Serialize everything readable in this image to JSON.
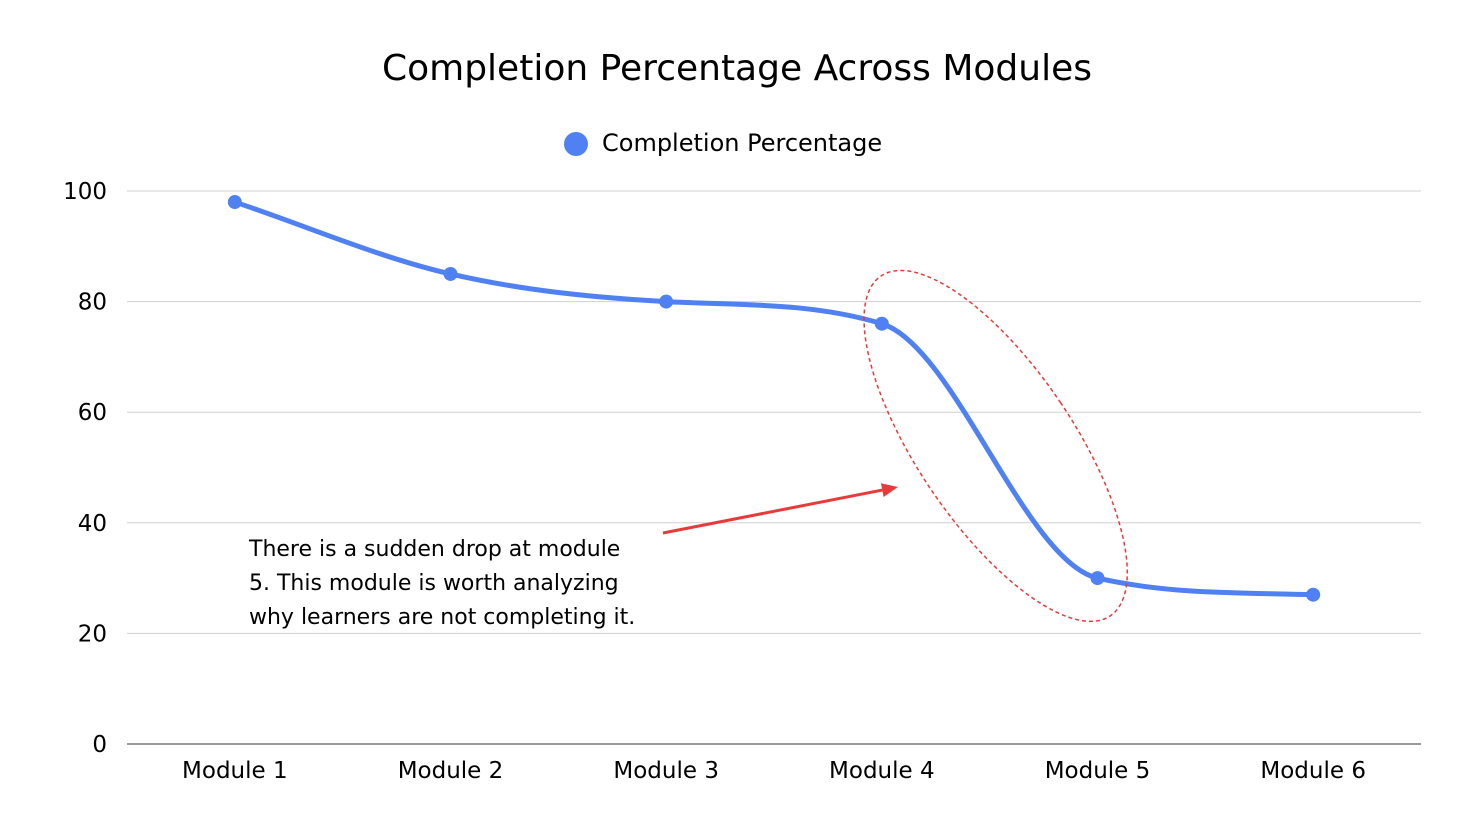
{
  "chart_data": {
    "type": "line",
    "title": "Completion Percentage Across Modules",
    "xlabel": "",
    "ylabel": "",
    "categories": [
      "Module 1",
      "Module 2",
      "Module 3",
      "Module 4",
      "Module 5",
      "Module 6"
    ],
    "series": [
      {
        "name": "Completion Percentage",
        "values": [
          98,
          85,
          80,
          76,
          30,
          27
        ],
        "color": "#4f81f2"
      }
    ],
    "ylim": [
      0,
      100
    ],
    "yticks": [
      "0",
      "20",
      "40",
      "60",
      "80",
      "100"
    ],
    "grid": true,
    "legend_position": "top-center",
    "smooth": true,
    "annotation": {
      "lines": [
        "There is a sudden drop at module",
        "5. This module is worth analyzing",
        "why learners are not completing it."
      ],
      "color": "#e83a3a",
      "highlight_categories": [
        "Module 4",
        "Module 5"
      ]
    }
  }
}
